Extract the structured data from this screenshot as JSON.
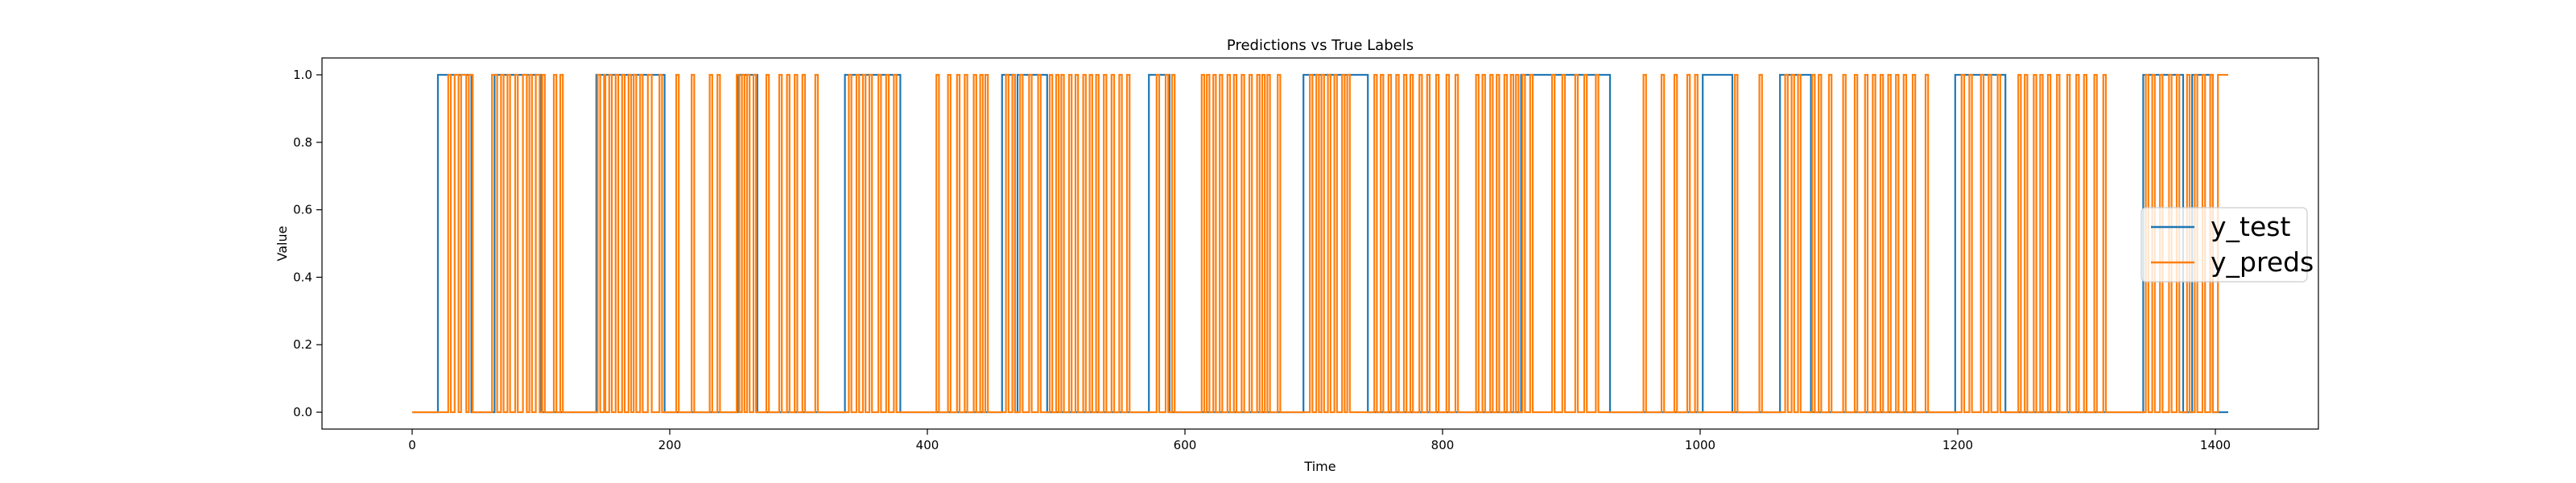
{
  "chart_data": {
    "type": "line",
    "title": "Predictions vs True Labels",
    "xlabel": "Time",
    "ylabel": "Value",
    "xlim": [
      -70,
      1480
    ],
    "ylim": [
      -0.05,
      1.05
    ],
    "xticks": [
      0,
      200,
      400,
      600,
      800,
      1000,
      1200,
      1400
    ],
    "yticks": [
      0.0,
      0.2,
      0.4,
      0.6,
      0.8,
      1.0
    ],
    "xtick_labels": [
      "0",
      "200",
      "400",
      "600",
      "800",
      "1000",
      "1200",
      "1400"
    ],
    "ytick_labels": [
      "0.0",
      "0.2",
      "0.4",
      "0.6",
      "0.8",
      "1.0"
    ],
    "grid": false,
    "legend_position": "center-right",
    "x_range": [
      0,
      1410
    ],
    "series": [
      {
        "name": "y_test",
        "color": "#1f77b4",
        "style": "step",
        "initial_value": 0,
        "segments": [
          [
            20,
            46
          ],
          [
            64,
            100
          ],
          [
            143,
            196
          ],
          [
            253,
            268
          ],
          [
            336,
            379
          ],
          [
            458,
            468
          ],
          [
            470,
            493
          ],
          [
            572,
            588
          ],
          [
            692,
            742
          ],
          [
            861,
            930
          ],
          [
            1002,
            1025
          ],
          [
            1062,
            1086
          ],
          [
            1198,
            1237
          ],
          [
            1344,
            1375
          ],
          [
            1382,
            1398
          ]
        ]
      },
      {
        "name": "y_preds",
        "color": "#ff7f0e",
        "style": "step",
        "initial_value": 0,
        "segments": [
          [
            28,
            30
          ],
          [
            33,
            36
          ],
          [
            38,
            42
          ],
          [
            44,
            47
          ],
          [
            62,
            66
          ],
          [
            69,
            71
          ],
          [
            74,
            76
          ],
          [
            80,
            82
          ],
          [
            86,
            89
          ],
          [
            91,
            93
          ],
          [
            96,
            99
          ],
          [
            101,
            103
          ],
          [
            110,
            112
          ],
          [
            115,
            117
          ],
          [
            144,
            146
          ],
          [
            149,
            150
          ],
          [
            153,
            155
          ],
          [
            158,
            160
          ],
          [
            163,
            165
          ],
          [
            168,
            170
          ],
          [
            172,
            174
          ],
          [
            177,
            179
          ],
          [
            183,
            186
          ],
          [
            192,
            194
          ],
          [
            205,
            207
          ],
          [
            217,
            219
          ],
          [
            231,
            233
          ],
          [
            237,
            239
          ],
          [
            252,
            254
          ],
          [
            256,
            258
          ],
          [
            260,
            262
          ],
          [
            265,
            267
          ],
          [
            275,
            277
          ],
          [
            285,
            287
          ],
          [
            291,
            293
          ],
          [
            297,
            299
          ],
          [
            303,
            305
          ],
          [
            313,
            315
          ],
          [
            339,
            341
          ],
          [
            345,
            347
          ],
          [
            350,
            352
          ],
          [
            355,
            357
          ],
          [
            362,
            364
          ],
          [
            368,
            370
          ],
          [
            374,
            376
          ],
          [
            407,
            409
          ],
          [
            416,
            418
          ],
          [
            423,
            425
          ],
          [
            429,
            431
          ],
          [
            436,
            438
          ],
          [
            441,
            443
          ],
          [
            445,
            447
          ],
          [
            461,
            463
          ],
          [
            466,
            468
          ],
          [
            472,
            474
          ],
          [
            479,
            481
          ],
          [
            486,
            488
          ],
          [
            495,
            497
          ],
          [
            500,
            502
          ],
          [
            504,
            506
          ],
          [
            510,
            512
          ],
          [
            515,
            517
          ],
          [
            521,
            523
          ],
          [
            526,
            528
          ],
          [
            531,
            533
          ],
          [
            537,
            539
          ],
          [
            543,
            545
          ],
          [
            549,
            551
          ],
          [
            555,
            557
          ],
          [
            578,
            580
          ],
          [
            585,
            587
          ],
          [
            590,
            592
          ],
          [
            613,
            615
          ],
          [
            617,
            619
          ],
          [
            622,
            624
          ],
          [
            627,
            629
          ],
          [
            633,
            635
          ],
          [
            638,
            640
          ],
          [
            644,
            646
          ],
          [
            650,
            652
          ],
          [
            656,
            658
          ],
          [
            660,
            662
          ],
          [
            664,
            666
          ],
          [
            672,
            674
          ],
          [
            697,
            699
          ],
          [
            702,
            704
          ],
          [
            706,
            708
          ],
          [
            711,
            713
          ],
          [
            716,
            718
          ],
          [
            722,
            724
          ],
          [
            726,
            728
          ],
          [
            747,
            749
          ],
          [
            752,
            754
          ],
          [
            758,
            760
          ],
          [
            764,
            766
          ],
          [
            770,
            772
          ],
          [
            775,
            777
          ],
          [
            782,
            784
          ],
          [
            788,
            790
          ],
          [
            795,
            797
          ],
          [
            803,
            805
          ],
          [
            810,
            812
          ],
          [
            826,
            828
          ],
          [
            831,
            833
          ],
          [
            837,
            839
          ],
          [
            842,
            844
          ],
          [
            848,
            850
          ],
          [
            853,
            855
          ],
          [
            857,
            859
          ],
          [
            862,
            864
          ],
          [
            868,
            870
          ],
          [
            885,
            887
          ],
          [
            893,
            895
          ],
          [
            903,
            905
          ],
          [
            910,
            912
          ],
          [
            919,
            921
          ],
          [
            956,
            958
          ],
          [
            970,
            972
          ],
          [
            980,
            982
          ],
          [
            990,
            992
          ],
          [
            996,
            998
          ],
          [
            1027,
            1029
          ],
          [
            1046,
            1048
          ],
          [
            1066,
            1068
          ],
          [
            1071,
            1073
          ],
          [
            1076,
            1078
          ],
          [
            1087,
            1089
          ],
          [
            1092,
            1094
          ],
          [
            1100,
            1102
          ],
          [
            1111,
            1113
          ],
          [
            1120,
            1122
          ],
          [
            1128,
            1130
          ],
          [
            1134,
            1136
          ],
          [
            1140,
            1142
          ],
          [
            1146,
            1148
          ],
          [
            1152,
            1154
          ],
          [
            1158,
            1160
          ],
          [
            1165,
            1167
          ],
          [
            1175,
            1177
          ],
          [
            1203,
            1205
          ],
          [
            1209,
            1211
          ],
          [
            1218,
            1220
          ],
          [
            1224,
            1226
          ],
          [
            1231,
            1233
          ],
          [
            1247,
            1249
          ],
          [
            1252,
            1254
          ],
          [
            1259,
            1261
          ],
          [
            1264,
            1266
          ],
          [
            1270,
            1272
          ],
          [
            1277,
            1279
          ],
          [
            1285,
            1287
          ],
          [
            1292,
            1294
          ],
          [
            1298,
            1300
          ],
          [
            1306,
            1308
          ],
          [
            1313,
            1315
          ],
          [
            1346,
            1348
          ],
          [
            1351,
            1353
          ],
          [
            1357,
            1359
          ],
          [
            1364,
            1366
          ],
          [
            1370,
            1372
          ],
          [
            1378,
            1380
          ],
          [
            1384,
            1386
          ],
          [
            1390,
            1392
          ],
          [
            1396,
            1398
          ],
          [
            1402,
            1410
          ]
        ]
      }
    ]
  }
}
